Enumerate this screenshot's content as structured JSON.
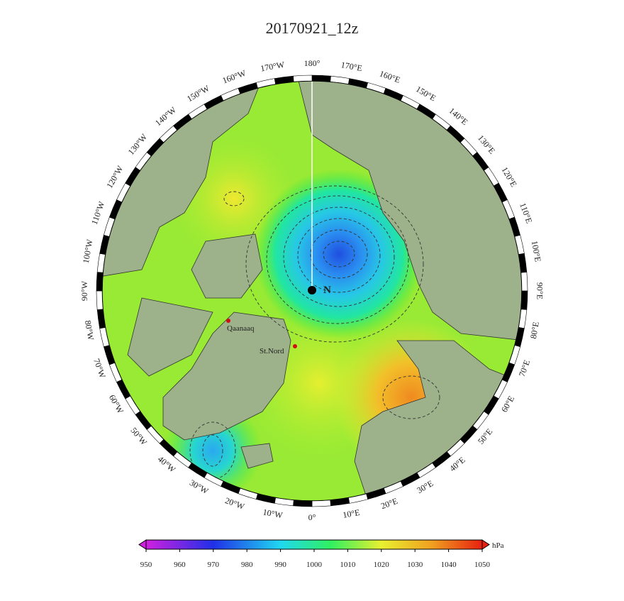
{
  "title": "20170921_12z",
  "longitude_labels": [
    "180°",
    "170°E",
    "160°E",
    "150°E",
    "140°E",
    "130°E",
    "120°E",
    "110°E",
    "100°E",
    "90°E",
    "80°E",
    "70°E",
    "60°E",
    "50°E",
    "40°E",
    "30°E",
    "20°E",
    "10°E",
    "0°",
    "10°W",
    "20°W",
    "30°W",
    "40°W",
    "50°W",
    "60°W",
    "70°W",
    "80°W",
    "90°W",
    "100°W",
    "110°W",
    "120°W",
    "130°W",
    "140°W",
    "150°W",
    "160°W",
    "170°W"
  ],
  "pole_label": "N",
  "places": [
    {
      "label": "Qaanaaq"
    },
    {
      "label": "St.Nord"
    }
  ],
  "colorbar": {
    "ticks": [
      950,
      960,
      970,
      980,
      990,
      1000,
      1010,
      1020,
      1030,
      1040,
      1050
    ],
    "unit": "hPa"
  }
}
